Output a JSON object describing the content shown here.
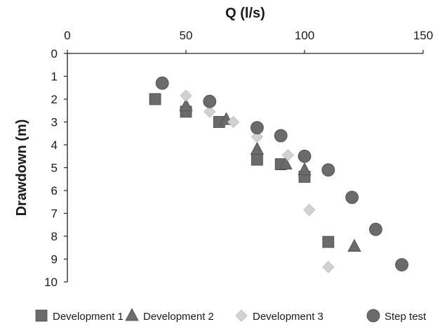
{
  "chart_data": {
    "type": "scatter",
    "title": "",
    "xlabel": "Q (l/s)",
    "ylabel": "Drawdown (m)",
    "x_axis_position": "top",
    "y_axis_inverted": true,
    "xlim": [
      0,
      150
    ],
    "ylim": [
      0,
      10
    ],
    "x_ticks": [
      0,
      50,
      100,
      150
    ],
    "y_ticks": [
      0,
      1,
      2,
      3,
      4,
      5,
      6,
      7,
      8,
      9,
      10
    ],
    "x_tick_labels": [
      "0",
      "50",
      "100",
      "150"
    ],
    "y_tick_labels": [
      "0",
      "1",
      "2",
      "3",
      "4",
      "5",
      "6",
      "7",
      "8",
      "9",
      "10"
    ],
    "grid": false,
    "legend_position": "bottom",
    "series": [
      {
        "name": "Development 1",
        "marker": "square",
        "color": "#6b6b6b",
        "points": [
          [
            37,
            2.0
          ],
          [
            50,
            2.55
          ],
          [
            64,
            3.0
          ],
          [
            80,
            4.65
          ],
          [
            90,
            4.85
          ],
          [
            100,
            5.4
          ],
          [
            110,
            8.25
          ]
        ]
      },
      {
        "name": "Development 2",
        "marker": "triangle",
        "color": "#6b6b6b",
        "points": [
          [
            50,
            2.3
          ],
          [
            67,
            2.9
          ],
          [
            80,
            4.2
          ],
          [
            92,
            4.85
          ],
          [
            100,
            5.1
          ],
          [
            121,
            8.45
          ]
        ]
      },
      {
        "name": "Development 3",
        "marker": "diamond",
        "color": "#d2d2d2",
        "points": [
          [
            50,
            1.85
          ],
          [
            60,
            2.55
          ],
          [
            70,
            3.0
          ],
          [
            80,
            3.65
          ],
          [
            93,
            4.45
          ],
          [
            102,
            6.85
          ],
          [
            110,
            9.35
          ]
        ]
      },
      {
        "name": "Step test",
        "marker": "circle",
        "color": "#6b6b6b",
        "points": [
          [
            40,
            1.3
          ],
          [
            60,
            2.1
          ],
          [
            80,
            3.25
          ],
          [
            90,
            3.6
          ],
          [
            100,
            4.5
          ],
          [
            110,
            5.1
          ],
          [
            120,
            6.3
          ],
          [
            130,
            7.7
          ],
          [
            141,
            9.25
          ]
        ]
      }
    ]
  }
}
